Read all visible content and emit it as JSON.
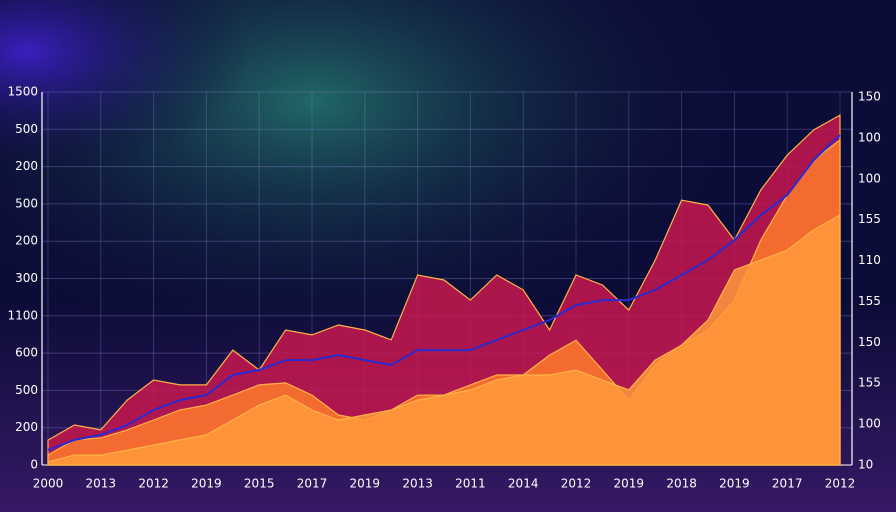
{
  "chart_data": {
    "type": "area",
    "categories": [
      "2000",
      null,
      "2013",
      null,
      "2012",
      null,
      "2019",
      null,
      "2015",
      null,
      "2017",
      null,
      "2019",
      null,
      "2013",
      null,
      "2011",
      null,
      "2014",
      null,
      "2012",
      null,
      "2019",
      null,
      "2018",
      null,
      "2019",
      null,
      "2017",
      null,
      "2012"
    ],
    "ylim": [
      0,
      1500
    ],
    "y_labels": [
      "1500",
      "500",
      "200",
      "500",
      "200",
      "300",
      "1100",
      "600",
      "500",
      "200",
      "0"
    ],
    "y2_labels": [
      "150",
      "100",
      "100",
      "155",
      "110",
      "155",
      "150",
      "155",
      "100",
      "10"
    ],
    "grid": true,
    "series": [
      {
        "color": "#c8174f",
        "values": [
          100,
          161,
          141,
          261,
          342,
          322,
          322,
          462,
          382,
          543,
          523,
          563,
          543,
          503,
          764,
          744,
          663,
          764,
          704,
          543,
          764,
          724,
          623,
          824,
          1065,
          1045,
          905,
          1106,
          1246,
          1347,
          1407
        ]
      },
      {
        "color": "#ff7a2a",
        "values": [
          40,
          101,
          109,
          141,
          181,
          221,
          241,
          281,
          322,
          330,
          281,
          201,
          181,
          221,
          281,
          281,
          322,
          362,
          362,
          442,
          502,
          382,
          261,
          402,
          482,
          543,
          663,
          905,
          1085,
          1226,
          1307
        ]
      },
      {
        "color": "#ff9a3c",
        "values": [
          12,
          40,
          40,
          60,
          80,
          101,
          121,
          181,
          241,
          281,
          221,
          181,
          201,
          221,
          261,
          281,
          302,
          342,
          362,
          362,
          382,
          342,
          302,
          422,
          482,
          583,
          784,
          824,
          864,
          945,
          1005
        ]
      },
      {
        "color": "#2a2ad0",
        "line": true,
        "values": [
          60,
          101,
          121,
          161,
          221,
          261,
          281,
          362,
          382,
          422,
          422,
          442,
          422,
          402,
          462,
          462,
          462,
          503,
          543,
          583,
          643,
          663,
          663,
          704,
          764,
          824,
          905,
          1005,
          1085,
          1226,
          1327
        ]
      }
    ]
  }
}
